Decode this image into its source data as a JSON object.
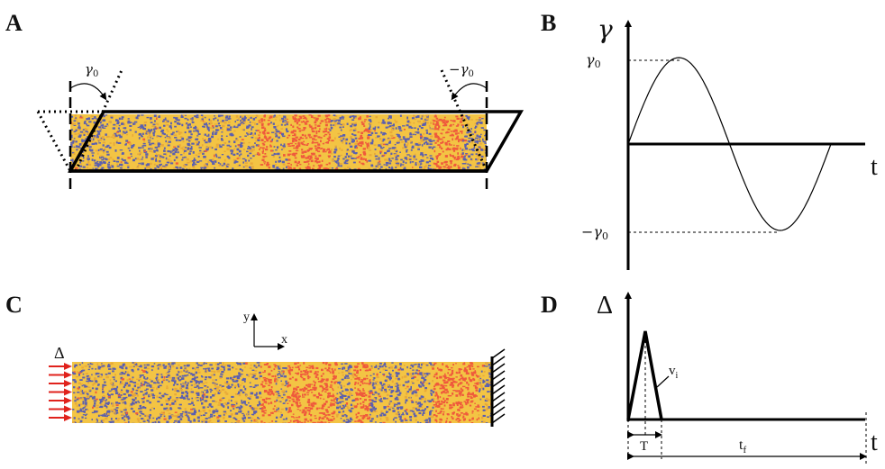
{
  "panels": {
    "a": {
      "label": "A",
      "angle_left": "γ",
      "angle_left_sub": "0",
      "angle_right": "−γ",
      "angle_right_sub": "0",
      "colors": {
        "base": "#f3c444",
        "secondary": "#5a5fb0",
        "highlight": "#ef5a3c"
      }
    },
    "b": {
      "label": "B",
      "y_axis": "γ",
      "x_axis": "t",
      "tick_top": "γ",
      "tick_top_sub": "0",
      "tick_bottom": "−γ",
      "tick_bottom_sub": "0"
    },
    "c": {
      "label": "C",
      "delta": "Δ",
      "axis_y": "y",
      "axis_x": "x",
      "arrow_color": "#e0221c",
      "arrow_count": 7
    },
    "d": {
      "label": "D",
      "y_axis": "Δ",
      "x_axis": "t",
      "slope": "v",
      "slope_sub": "i",
      "period": "T",
      "final": "t",
      "final_sub": "f"
    }
  }
}
